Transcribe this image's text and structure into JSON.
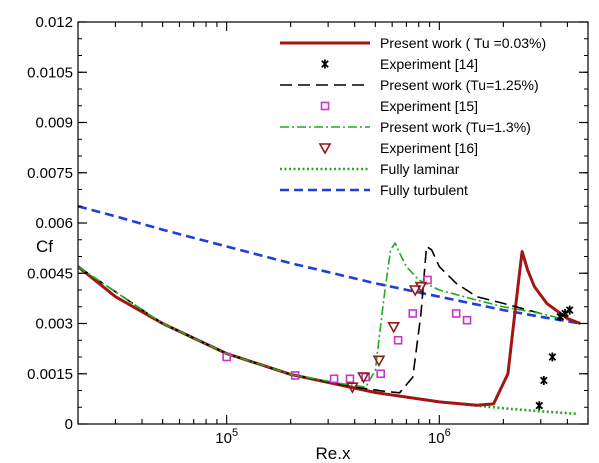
{
  "chart_data": {
    "type": "line",
    "title": "",
    "xlabel": "Re.x",
    "ylabel": "Cf",
    "x_scale": "log",
    "xlim": [
      20000,
      5000000
    ],
    "ylim": [
      0,
      0.012
    ],
    "y_ticks": [
      {
        "value": 0,
        "label": "0"
      },
      {
        "value": 0.0015,
        "label": "0.0015"
      },
      {
        "value": 0.003,
        "label": "0.003"
      },
      {
        "value": 0.0045,
        "label": "0.0045"
      },
      {
        "value": 0.006,
        "label": "0.006"
      },
      {
        "value": 0.0075,
        "label": "0.0075"
      },
      {
        "value": 0.009,
        "label": "0.009"
      },
      {
        "value": 0.0105,
        "label": "0.0105"
      },
      {
        "value": 0.012,
        "label": "0.012"
      }
    ],
    "x_ticks": [
      {
        "value": 100000,
        "base": "10",
        "exp": "5"
      },
      {
        "value": 1000000,
        "base": "10",
        "exp": "6"
      }
    ],
    "grid": false,
    "legend_position": "top-right",
    "series": [
      {
        "name": "Present work ( Tu =0.03%)",
        "kind": "line",
        "color": "#a31515",
        "dash": "solid",
        "x": [
          20000,
          30000,
          50000,
          100000,
          200000,
          500000,
          1000000,
          1500000,
          1800000,
          2100000,
          2350000,
          2450000,
          2600000,
          2800000,
          3200000,
          4000000,
          4600000
        ],
        "y": [
          0.0047,
          0.0038,
          0.003,
          0.0021,
          0.00148,
          0.00094,
          0.00066,
          0.00056,
          0.0006,
          0.0015,
          0.0042,
          0.00515,
          0.0046,
          0.0041,
          0.0036,
          0.00315,
          0.003
        ]
      },
      {
        "name": "Experiment [14]",
        "kind": "marker",
        "marker": "asterisk",
        "color": "#000000",
        "x": [
          2950000,
          3100000,
          3400000,
          3700000,
          3900000,
          4100000
        ],
        "y": [
          0.00055,
          0.0013,
          0.002,
          0.0032,
          0.0033,
          0.0034
        ]
      },
      {
        "name": "Present work (Tu=1.25%)",
        "kind": "line",
        "color": "#000000",
        "dash": "long",
        "x": [
          20000,
          50000,
          100000,
          200000,
          400000,
          550000,
          650000,
          750000,
          820000,
          870000,
          920000,
          1000000,
          1200000,
          1500000,
          2000000,
          3000000
        ],
        "y": [
          0.0047,
          0.003,
          0.0021,
          0.00148,
          0.0011,
          0.00098,
          0.00093,
          0.0014,
          0.0033,
          0.0053,
          0.0052,
          0.0047,
          0.0042,
          0.0038,
          0.0036,
          0.0033
        ]
      },
      {
        "name": "Experiment [15]",
        "kind": "marker",
        "marker": "square",
        "color": "#cc33cc",
        "x": [
          100000,
          210000,
          320000,
          380000,
          450000,
          530000,
          640000,
          750000,
          880000,
          1200000,
          1350000
        ],
        "y": [
          0.002,
          0.00145,
          0.00135,
          0.00135,
          0.0014,
          0.0015,
          0.0025,
          0.0033,
          0.0043,
          0.0033,
          0.0031
        ]
      },
      {
        "name": "Present work (Tu=1.3%)",
        "kind": "line",
        "color": "#22aa22",
        "dash": "dashdot",
        "x": [
          20000,
          50000,
          100000,
          200000,
          350000,
          450000,
          500000,
          550000,
          590000,
          620000,
          650000,
          700000,
          800000,
          1000000,
          1500000,
          2000000,
          3000000,
          4000000
        ],
        "y": [
          0.0047,
          0.003,
          0.0021,
          0.00148,
          0.0012,
          0.0011,
          0.0016,
          0.0038,
          0.0052,
          0.0054,
          0.0051,
          0.0047,
          0.0043,
          0.004,
          0.0037,
          0.0035,
          0.0033,
          0.0031
        ]
      },
      {
        "name": "Experiment [16]",
        "kind": "marker",
        "marker": "triangle-down",
        "color": "#8b1a1a",
        "x": [
          390000,
          440000,
          520000,
          610000,
          770000,
          820000
        ],
        "y": [
          0.0011,
          0.0014,
          0.0019,
          0.0029,
          0.004,
          0.0041
        ]
      },
      {
        "name": "Fully laminar",
        "kind": "line",
        "color": "#22aa22",
        "dash": "dotted",
        "x": [
          20000,
          30000,
          50000,
          100000,
          200000,
          500000,
          1000000,
          2000000,
          3000000,
          4500000
        ],
        "y": [
          0.0047,
          0.0038,
          0.003,
          0.0021,
          0.00148,
          0.00094,
          0.00066,
          0.00047,
          0.00038,
          0.0003
        ]
      },
      {
        "name": "Fully turbulent",
        "kind": "line",
        "color": "#1f3fd9",
        "dash": "dashed",
        "x": [
          20000,
          30000,
          50000,
          100000,
          200000,
          500000,
          1000000,
          2000000,
          3000000,
          4600000
        ],
        "y": [
          0.0065,
          0.0062,
          0.0058,
          0.0053,
          0.0048,
          0.0042,
          0.0038,
          0.0034,
          0.0032,
          0.003
        ]
      }
    ]
  }
}
